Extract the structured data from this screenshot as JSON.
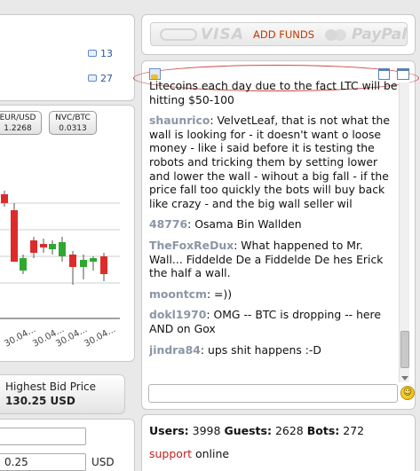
{
  "left": {
    "comment_counts": [
      "13",
      "27"
    ],
    "tickers": [
      {
        "pair": "EUR/USD",
        "value": "1.2268"
      },
      {
        "pair": "NVC/BTC",
        "value": "0.0313"
      }
    ],
    "chart_x_labels": [
      "30.04...",
      "30.04...",
      "30.04...",
      "30.04..."
    ],
    "bid": {
      "label": "Highest Bid Price",
      "value": "130.25 USD"
    },
    "order_form": {
      "price_value": "0.25",
      "currency_label": "USD"
    }
  },
  "funds": {
    "visa": "VISA",
    "add_funds_label": "ADD FUNDS",
    "paypal": "PayPal"
  },
  "chat": {
    "messages": [
      {
        "user": "",
        "text": "Litecoins each day due to the fact LTC will be hitting $50-100"
      },
      {
        "user": "shaunrico",
        "text": ": VelvetLeaf, that is not what the wall is looking for - it doesn't want o loose money - like i said before it is testing the robots and tricking them by setting lower and lower the wall - wihout a big fall - if the price fall too quickly the bots will buy back like crazy - and the big wall seller wil"
      },
      {
        "user": "48776",
        "text": ": Osama Bin Wallden"
      },
      {
        "user": "TheFoxReDux",
        "text": ": What happened to Mr. Wall... Fiddelde De a Fiddelde De hes Erick the half a wall."
      },
      {
        "user": "moontcm",
        "text": ": =))"
      },
      {
        "user": "dokl1970",
        "text": ": OMG -- BTC is dropping -- here AND on Gox"
      },
      {
        "user": "jindra84",
        "text": ": ups shit happens :-D"
      }
    ],
    "input_value": ""
  },
  "stats": {
    "users_label": "Users:",
    "users": "3998",
    "guests_label": "Guests:",
    "guests": "2628",
    "bots_label": "Bots:",
    "bots": "272",
    "support_link": "support",
    "support_status": "online"
  },
  "colors": {
    "candle_up": "#2fa82f",
    "candle_down": "#dd2b2b",
    "username": "#8a96a6",
    "add_funds": "#c03a00"
  }
}
